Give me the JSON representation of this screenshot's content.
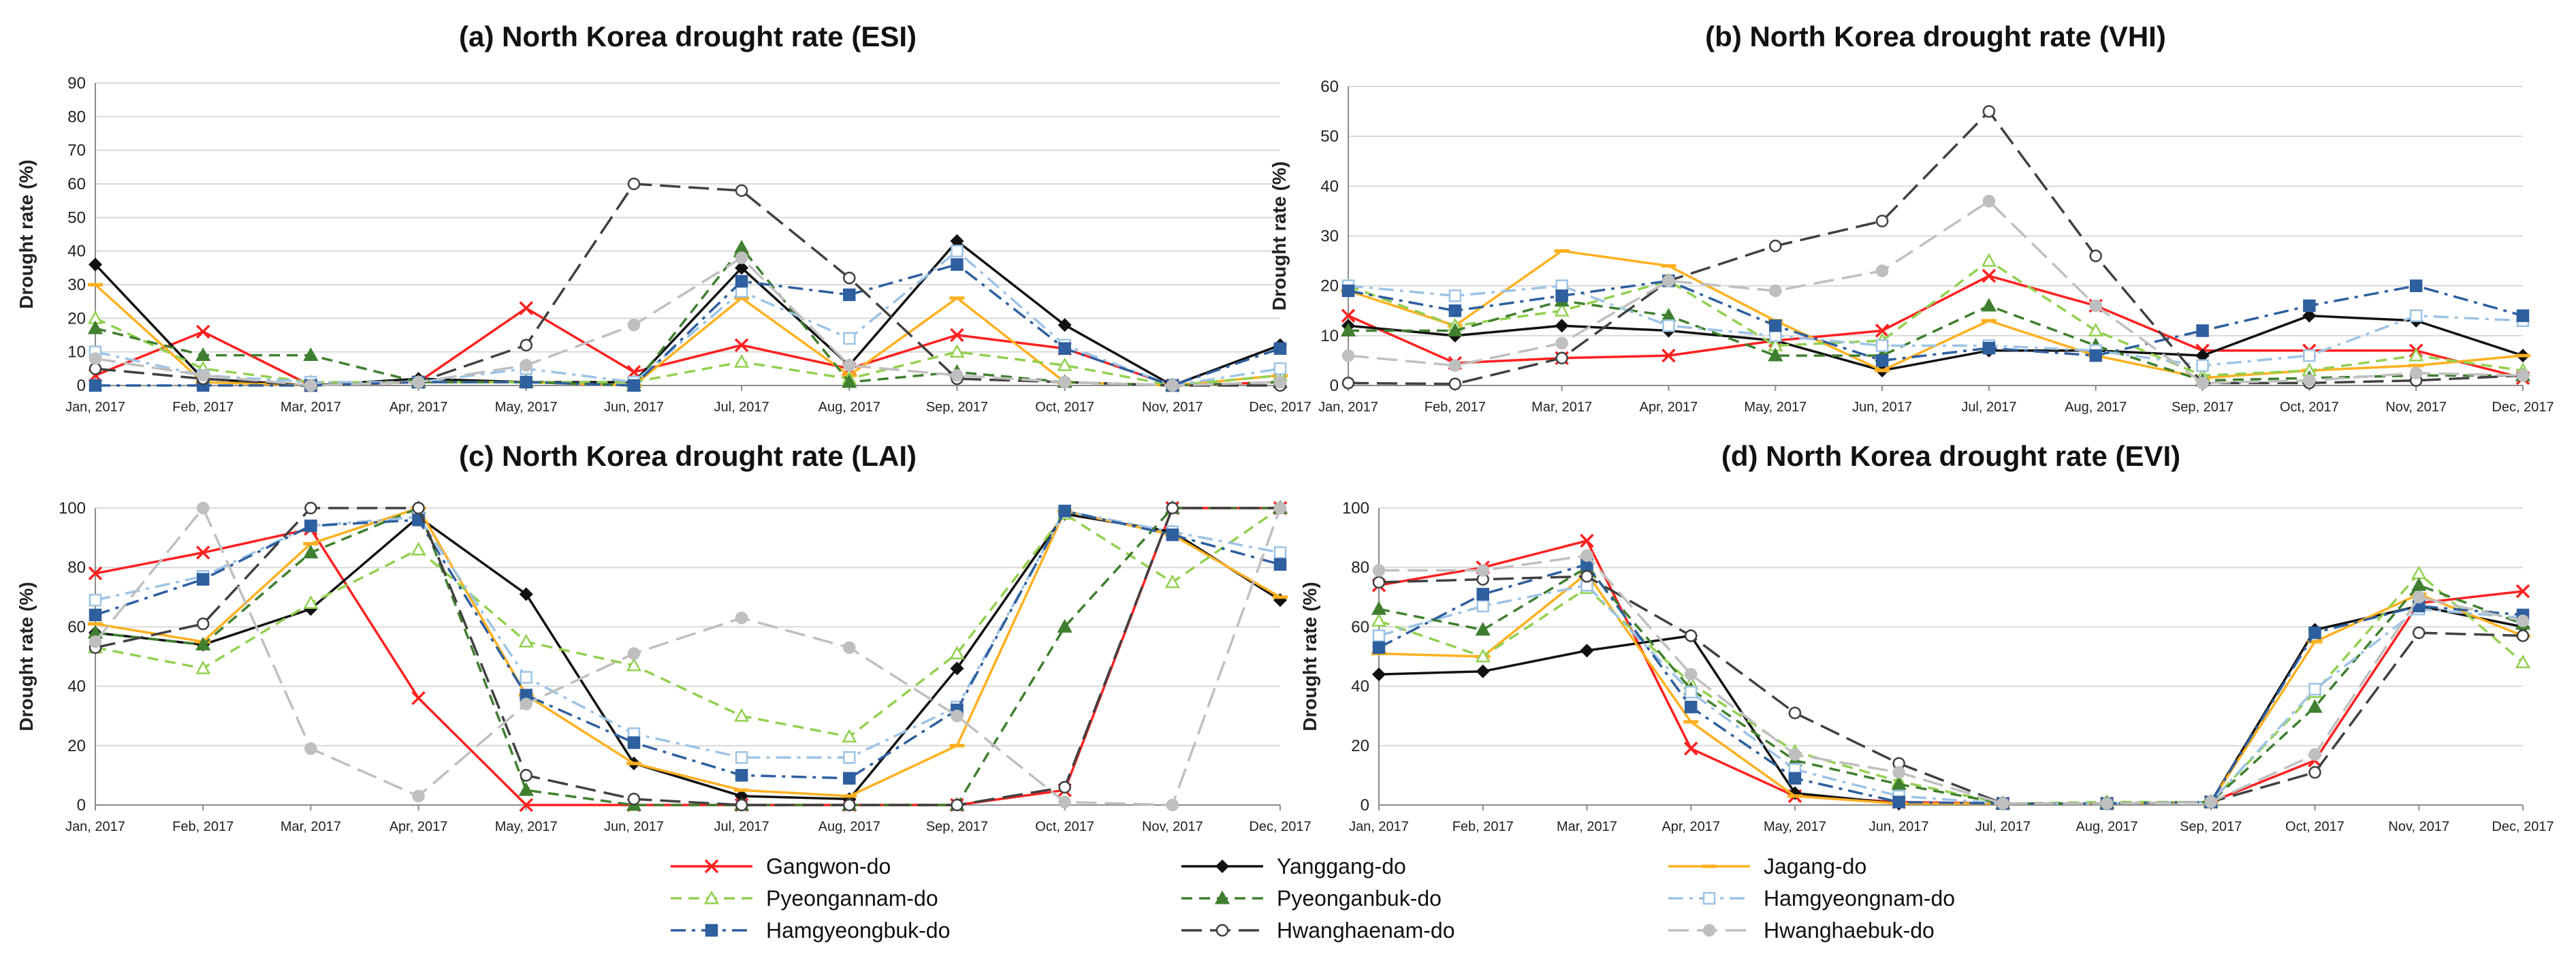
{
  "series_styles": [
    {
      "name": "Gangwon-do",
      "color": "#ff2020",
      "dash": "",
      "marker": "x",
      "fill": "#ff2020"
    },
    {
      "name": "Yanggang-do",
      "color": "#111111",
      "dash": "",
      "marker": "diamond",
      "fill": "#111111"
    },
    {
      "name": "Jagang-do",
      "color": "#ffb020",
      "dash": "",
      "marker": "dash",
      "fill": "#ffb020"
    },
    {
      "name": "Pyeongannam-do",
      "color": "#92d050",
      "dash": "dash",
      "marker": "triangle-open",
      "fill": "#ffffff"
    },
    {
      "name": "Pyeonganbuk-do",
      "color": "#3f7f2f",
      "dash": "dash",
      "marker": "triangle",
      "fill": "#3f7f2f"
    },
    {
      "name": "Hamgyeongnam-do",
      "color": "#9dc3e6",
      "dash": "dashdot",
      "marker": "square-open",
      "fill": "#ffffff"
    },
    {
      "name": "Hamgyeongbuk-do",
      "color": "#2e5f9e",
      "dash": "dashdot",
      "marker": "square",
      "fill": "#2e5f9e"
    },
    {
      "name": "Hwanghaenam-do",
      "color": "#404040",
      "dash": "longdash",
      "marker": "circle-open",
      "fill": "#ffffff"
    },
    {
      "name": "Hwanghaebuk-do",
      "color": "#bfbfbf",
      "dash": "longdash",
      "marker": "circle",
      "fill": "#bfbfbf"
    }
  ],
  "chart_data": [
    {
      "type": "line",
      "title": "(a) North Korea drought rate (ESI)",
      "xlabel": "",
      "ylabel": "Drought rate (%)",
      "ylim": [
        0,
        90
      ],
      "yticks": [
        0,
        10,
        20,
        30,
        40,
        50,
        60,
        70,
        80,
        90
      ],
      "grid": true,
      "categories": [
        "Jan, 2017",
        "Feb, 2017",
        "Mar, 2017",
        "Apr, 2017",
        "May, 2017",
        "Jun, 2017",
        "Jul, 2017",
        "Aug, 2017",
        "Sep, 2017",
        "Oct, 2017",
        "Nov, 2017",
        "Dec, 2017"
      ],
      "series": [
        {
          "name": "Gangwon-do",
          "values": [
            3,
            16,
            0,
            1,
            23,
            4,
            12,
            5,
            15,
            11,
            0,
            1
          ]
        },
        {
          "name": "Yanggang-do",
          "values": [
            36,
            2,
            0,
            2,
            1,
            1,
            35,
            6,
            43,
            18,
            0,
            12
          ]
        },
        {
          "name": "Jagang-do",
          "values": [
            30,
            1,
            0,
            1,
            1,
            0,
            26,
            3,
            26,
            1,
            0,
            3
          ]
        },
        {
          "name": "Pyeongannam-do",
          "values": [
            20,
            5,
            1,
            1,
            1,
            1,
            7,
            2,
            10,
            6,
            0,
            3
          ]
        },
        {
          "name": "Pyeonganbuk-do",
          "values": [
            17,
            9,
            9,
            1,
            1,
            0,
            41,
            1,
            4,
            1,
            0,
            1
          ]
        },
        {
          "name": "Hamgyeongnam-do",
          "values": [
            10,
            3,
            1,
            1,
            5,
            1,
            28,
            14,
            40,
            12,
            0,
            5
          ]
        },
        {
          "name": "Hamgyeongbuk-do",
          "values": [
            0,
            0,
            0,
            1,
            1,
            0,
            31,
            27,
            36,
            11,
            0,
            11
          ]
        },
        {
          "name": "Hwanghaenam-do",
          "values": [
            5,
            2,
            0,
            1,
            12,
            60,
            58,
            32,
            2,
            1,
            0,
            0
          ]
        },
        {
          "name": "Hwanghaebuk-do",
          "values": [
            8,
            3,
            0,
            1,
            6,
            18,
            38,
            6,
            3,
            1,
            0,
            1
          ]
        }
      ]
    },
    {
      "type": "line",
      "title": "(b) North Korea drought rate (VHI)",
      "xlabel": "",
      "ylabel": "Drought rate (%)",
      "ylim": [
        0,
        60
      ],
      "yticks": [
        0,
        10,
        20,
        30,
        40,
        50,
        60
      ],
      "grid": true,
      "categories": [
        "Jan, 2017",
        "Feb, 2017",
        "Mar, 2017",
        "Apr, 2017",
        "May, 2017",
        "Jun, 2017",
        "Jul, 2017",
        "Aug, 2017",
        "Sep, 2017",
        "Oct, 2017",
        "Nov, 2017",
        "Dec, 2017"
      ],
      "series": [
        {
          "name": "Gangwon-do",
          "values": [
            14,
            4.5,
            5.5,
            6,
            9,
            11,
            22,
            16,
            7,
            7,
            7,
            1.5
          ]
        },
        {
          "name": "Yanggang-do",
          "values": [
            12,
            10,
            12,
            11,
            9,
            3,
            7,
            7,
            6,
            14,
            13,
            6
          ]
        },
        {
          "name": "Jagang-do",
          "values": [
            19,
            12,
            27,
            24,
            13,
            3,
            13,
            6,
            1.5,
            3,
            4,
            6
          ]
        },
        {
          "name": "Pyeongannam-do",
          "values": [
            20,
            12,
            15,
            21,
            8,
            9,
            25,
            11,
            2,
            3,
            6,
            3
          ]
        },
        {
          "name": "Pyeonganbuk-do",
          "values": [
            11,
            11,
            17,
            14,
            6,
            6,
            16,
            8,
            1,
            1.5,
            2,
            2
          ]
        },
        {
          "name": "Hamgyeongnam-do",
          "values": [
            20,
            18,
            20,
            12,
            10,
            8,
            8,
            7,
            4,
            6,
            14,
            13
          ]
        },
        {
          "name": "Hamgyeongbuk-do",
          "values": [
            19,
            15,
            18,
            21,
            12,
            5,
            7.5,
            6,
            11,
            16,
            20,
            14
          ]
        },
        {
          "name": "Hwanghaenam-do",
          "values": [
            0.5,
            0.3,
            5.5,
            21,
            28,
            33,
            55,
            26,
            0.5,
            0.5,
            1,
            2
          ]
        },
        {
          "name": "Hwanghaebuk-do",
          "values": [
            6,
            4,
            8.5,
            21,
            19,
            23,
            37,
            16,
            0.5,
            1,
            2.5,
            2
          ]
        }
      ]
    },
    {
      "type": "line",
      "title": "(c) North Korea drought rate (LAI)",
      "xlabel": "",
      "ylabel": "Drought rate (%)",
      "ylim": [
        0,
        100
      ],
      "yticks": [
        0,
        20,
        40,
        60,
        80,
        100
      ],
      "grid": true,
      "categories": [
        "Jan, 2017",
        "Feb, 2017",
        "Mar, 2017",
        "Apr, 2017",
        "May, 2017",
        "Jun, 2017",
        "Jul, 2017",
        "Aug, 2017",
        "Sep, 2017",
        "Oct, 2017",
        "Nov, 2017",
        "Dec, 2017"
      ],
      "series": [
        {
          "name": "Gangwon-do",
          "values": [
            78,
            85,
            93,
            36,
            0,
            0,
            0,
            0,
            0,
            5,
            100,
            100
          ]
        },
        {
          "name": "Yanggang-do",
          "values": [
            58,
            54,
            66,
            97,
            71,
            14,
            3,
            2,
            46,
            98,
            92,
            69
          ]
        },
        {
          "name": "Jagang-do",
          "values": [
            61,
            55,
            88,
            100,
            37,
            14,
            5,
            3,
            20,
            99,
            91,
            70
          ]
        },
        {
          "name": "Pyeongannam-do",
          "values": [
            53,
            46,
            68,
            86,
            55,
            47,
            30,
            23,
            51,
            98,
            75,
            100
          ]
        },
        {
          "name": "Pyeonganbuk-do",
          "values": [
            58,
            54,
            85,
            100,
            5,
            0,
            0,
            0,
            0,
            60,
            100,
            100
          ]
        },
        {
          "name": "Hamgyeongnam-do",
          "values": [
            69,
            77,
            94,
            97,
            43,
            24,
            16,
            16,
            33,
            99,
            92,
            85
          ]
        },
        {
          "name": "Hamgyeongbuk-do",
          "values": [
            64,
            76,
            94,
            96,
            37,
            21,
            10,
            9,
            32,
            99,
            91,
            81
          ]
        },
        {
          "name": "Hwanghaenam-do",
          "values": [
            53,
            61,
            100,
            100,
            10,
            2,
            0,
            0,
            0,
            6,
            100,
            100
          ]
        },
        {
          "name": "Hwanghaebuk-do",
          "values": [
            55,
            100,
            19,
            3,
            34,
            51,
            63,
            53,
            30,
            1,
            0,
            100
          ]
        }
      ]
    },
    {
      "type": "line",
      "title": "(d) North Korea drought rate (EVI)",
      "xlabel": "",
      "ylabel": "Drought rate (%)",
      "ylim": [
        0,
        100
      ],
      "yticks": [
        0,
        20,
        40,
        60,
        80,
        100
      ],
      "grid": true,
      "categories": [
        "Jan, 2017",
        "Feb, 2017",
        "Mar, 2017",
        "Apr, 2017",
        "May, 2017",
        "Jun, 2017",
        "Jul, 2017",
        "Aug, 2017",
        "Sep, 2017",
        "Oct, 2017",
        "Nov, 2017",
        "Dec, 2017"
      ],
      "series": [
        {
          "name": "Gangwon-do",
          "values": [
            74,
            80,
            89,
            19,
            3,
            1,
            0.5,
            0.5,
            1,
            15,
            68,
            72
          ]
        },
        {
          "name": "Yanggang-do",
          "values": [
            44,
            45,
            52,
            57,
            4,
            0.5,
            0.5,
            0.5,
            1,
            59,
            67,
            60
          ]
        },
        {
          "name": "Jagang-do",
          "values": [
            51,
            50,
            78,
            28,
            3,
            0.5,
            0.5,
            0.5,
            1,
            55,
            71,
            57
          ]
        },
        {
          "name": "Pyeongannam-do",
          "values": [
            62,
            50,
            73,
            41,
            18,
            8,
            0.5,
            1,
            1,
            38,
            78,
            48
          ]
        },
        {
          "name": "Pyeonganbuk-do",
          "values": [
            66,
            59,
            80,
            39,
            15,
            7,
            0.5,
            0.5,
            1,
            33,
            74,
            61
          ]
        },
        {
          "name": "Hamgyeongnam-do",
          "values": [
            57,
            67,
            74,
            38,
            12,
            3,
            0.5,
            0.5,
            1,
            39,
            66,
            63
          ]
        },
        {
          "name": "Hamgyeongbuk-do",
          "values": [
            53,
            71,
            81,
            33,
            9,
            1,
            0.5,
            0.5,
            1,
            58,
            67,
            64
          ]
        },
        {
          "name": "Hwanghaenam-do",
          "values": [
            75,
            76,
            77,
            57,
            31,
            14,
            0.5,
            0.5,
            1,
            11,
            58,
            57
          ]
        },
        {
          "name": "Hwanghaebuk-do",
          "values": [
            79,
            79,
            84,
            44,
            17,
            11,
            0.5,
            0.5,
            1,
            17,
            70,
            62
          ]
        }
      ]
    }
  ]
}
